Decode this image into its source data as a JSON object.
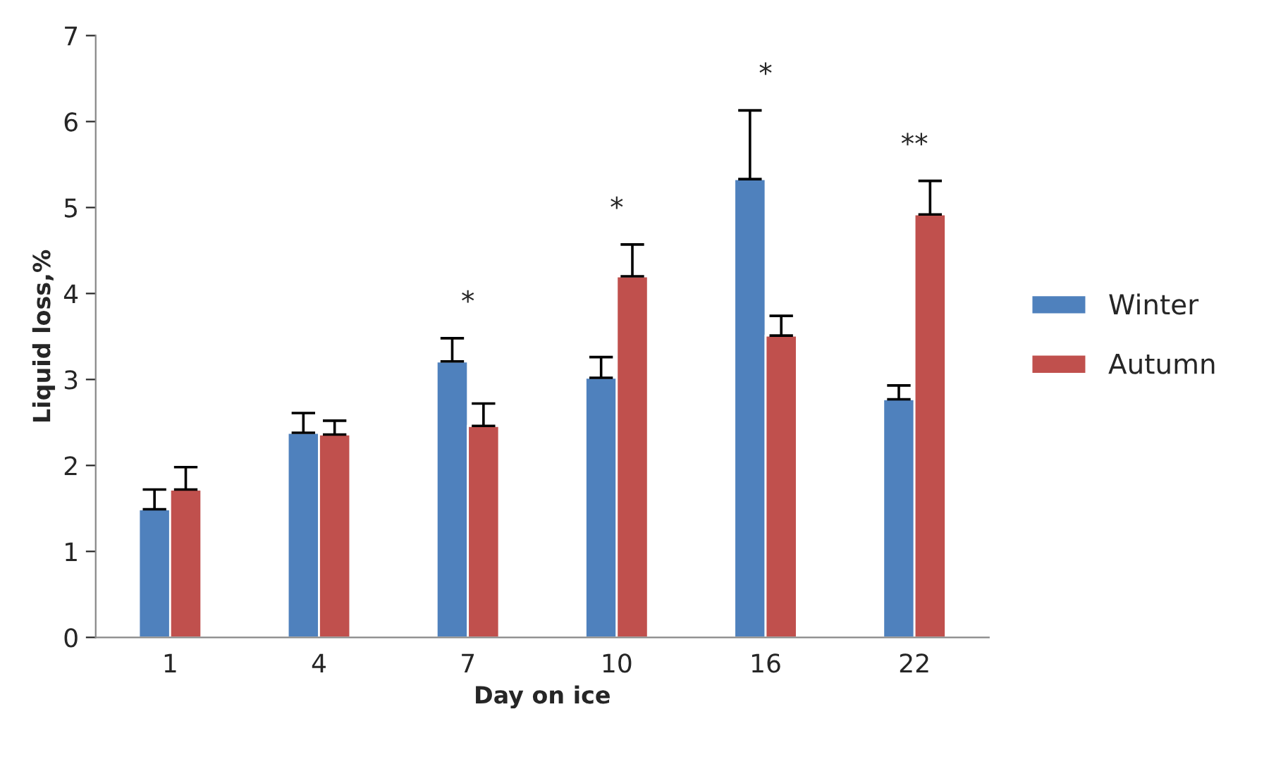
{
  "chart_data": {
    "type": "bar",
    "xlabel": "Day on ice",
    "ylabel": "Liquid loss,%",
    "categories": [
      "1",
      "4",
      "7",
      "10",
      "16",
      "22"
    ],
    "series": [
      {
        "name": "Winter",
        "color": "#4f81bd",
        "values": [
          1.49,
          2.38,
          3.21,
          3.02,
          5.33,
          2.77
        ],
        "errors": [
          [
            1.49,
            1.72
          ],
          [
            2.38,
            2.61
          ],
          [
            3.21,
            3.48
          ],
          [
            3.02,
            3.26
          ],
          [
            5.33,
            6.13
          ],
          [
            2.77,
            2.93
          ]
        ]
      },
      {
        "name": "Autumn",
        "color": "#c0504d",
        "values": [
          1.72,
          2.36,
          2.46,
          4.2,
          3.51,
          4.92
        ],
        "errors": [
          [
            1.72,
            1.98
          ],
          [
            2.36,
            2.52
          ],
          [
            2.46,
            2.72
          ],
          [
            4.2,
            4.57
          ],
          [
            3.51,
            3.74
          ],
          [
            4.92,
            5.31
          ]
        ]
      }
    ],
    "annotations": [
      "*",
      "*",
      "*",
      "**"
    ],
    "ylim": [
      0,
      7
    ],
    "yticks": [
      0,
      1,
      2,
      3,
      4,
      5,
      6,
      7
    ],
    "grid": false,
    "legend": "right"
  }
}
